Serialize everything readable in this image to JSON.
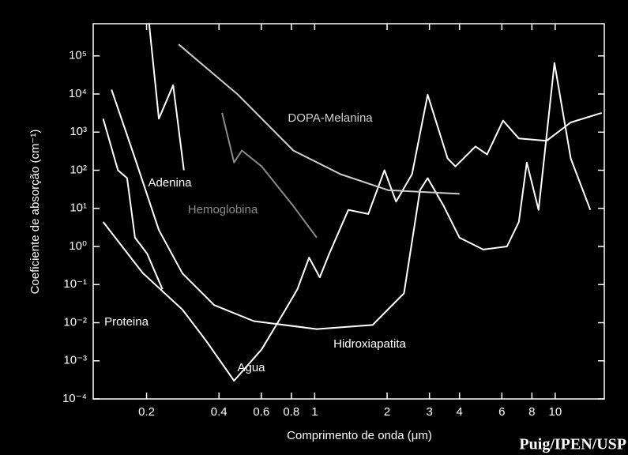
{
  "chart_data": {
    "type": "line",
    "x_label": "Comprimento de onda (μm)",
    "y_label": "Coeficiente de absorção (cm⁻¹)",
    "credit": "Puig/IPEN/USP",
    "xscale": "log",
    "yscale": "log",
    "xlim": [
      0.12,
      16
    ],
    "ylim": [
      0.0001,
      700000
    ],
    "xticks": [
      0.2,
      0.4,
      0.6,
      0.8,
      1,
      2,
      3,
      4,
      6,
      8,
      10
    ],
    "yticks": [
      {
        "value": 0.0001,
        "label": "10⁻⁴"
      },
      {
        "value": 0.001,
        "label": "10⁻³"
      },
      {
        "value": 0.01,
        "label": "10⁻²"
      },
      {
        "value": 0.1,
        "label": "10⁻¹"
      },
      {
        "value": 1,
        "label": "10⁰"
      },
      {
        "value": 10,
        "label": "10¹"
      },
      {
        "value": 100,
        "label": "10²"
      },
      {
        "value": 1000,
        "label": "10³"
      },
      {
        "value": 10000,
        "label": "10⁴"
      },
      {
        "value": 100000,
        "label": "10⁵"
      }
    ],
    "series": [
      {
        "name": "Agua",
        "color": "#ffffff",
        "x": [
          0.132,
          0.193,
          0.282,
          0.354,
          0.462,
          0.602,
          0.756,
          0.847,
          0.948,
          1.05,
          1.15,
          1.38,
          1.67,
          1.95,
          2.18,
          2.54,
          2.95,
          3.57,
          3.85,
          4.66,
          5.21,
          6.07,
          7.06,
          9.2,
          11.6,
          15.6
        ],
        "values": [
          4.4,
          0.2,
          0.022,
          0.0033,
          0.0003,
          0.002,
          0.022,
          0.075,
          0.51,
          0.155,
          0.65,
          9.1,
          7.1,
          100,
          15,
          79,
          9600,
          205,
          126,
          420,
          260,
          2000,
          680,
          590,
          1800,
          3200
        ]
      },
      {
        "name": "Hidroxiapatita",
        "color": "#ffffff",
        "x": [
          0.143,
          0.179,
          0.225,
          0.282,
          0.382,
          0.558,
          1.02,
          1.74,
          2.35,
          2.74,
          2.95,
          3.44,
          4.0,
          5.02,
          6.3,
          7.06,
          7.62,
          8.53,
          9.93,
          11.6,
          14.0
        ],
        "values": [
          13000,
          205,
          2.7,
          0.196,
          0.029,
          0.011,
          0.0068,
          0.0087,
          0.059,
          30,
          62,
          11.5,
          1.7,
          0.83,
          1,
          4.4,
          160,
          9.1,
          65000,
          205,
          9.1
        ]
      },
      {
        "name": "Proteina",
        "color": "#ffffff",
        "x": [
          0.132,
          0.152,
          0.166,
          0.179,
          0.201,
          0.233
        ],
        "values": [
          2250,
          100,
          62,
          1.7,
          0.65,
          0.075
        ]
      },
      {
        "name": "Adenina",
        "color": "#ffffff",
        "x": [
          0.205,
          0.225,
          0.258,
          0.286
        ],
        "values": [
          700000,
          2250,
          17000,
          100
        ]
      },
      {
        "name": "DOPA-Melanina",
        "color": "#cfcfcf",
        "x": [
          0.272,
          0.48,
          0.815,
          1.28,
          2.02,
          4.0
        ],
        "values": [
          200000,
          9600,
          330,
          79,
          30,
          24
        ]
      },
      {
        "name": "Hemoglobina",
        "color": "#8a8a8a",
        "x": [
          0.412,
          0.462,
          0.498,
          0.602,
          0.815,
          1.02
        ],
        "values": [
          3200,
          160,
          330,
          126,
          11.5,
          1.7
        ]
      }
    ]
  }
}
